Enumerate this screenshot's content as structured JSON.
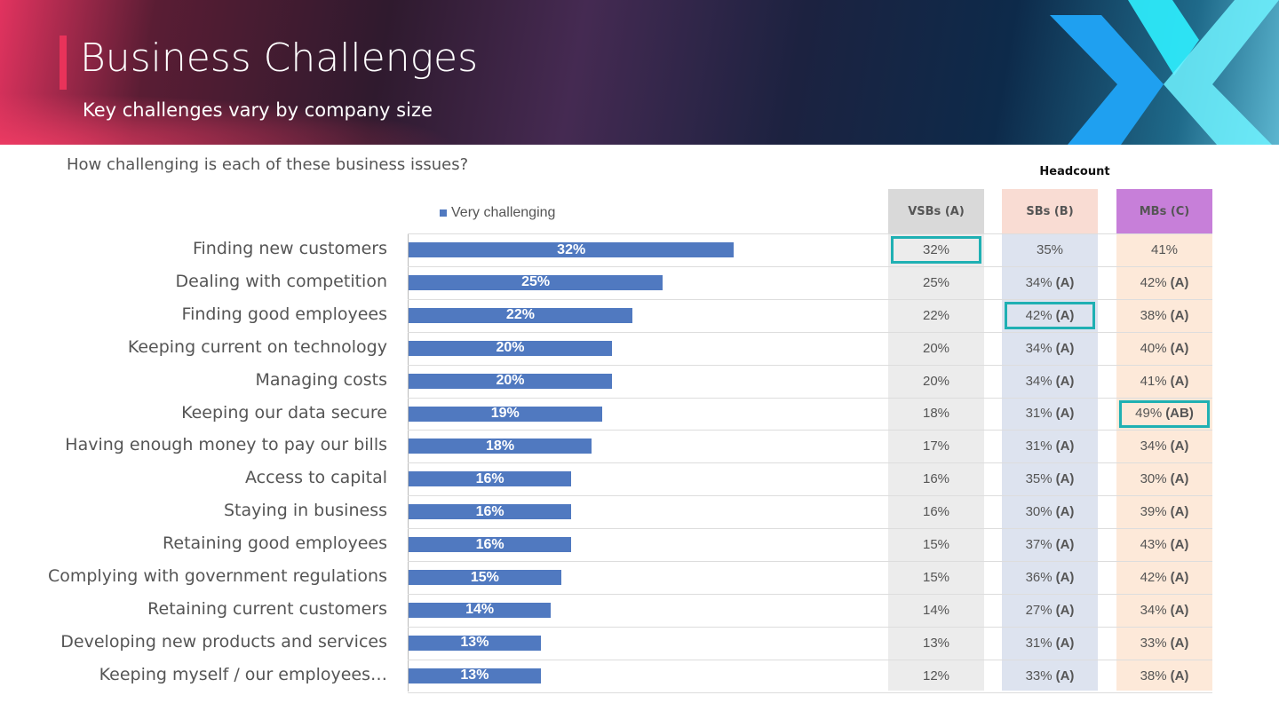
{
  "header": {
    "title": "Business Challenges",
    "subtitle": "Key challenges vary by company size"
  },
  "question": "How challenging is each of these business issues?",
  "table": {
    "group_label": "Headcount",
    "columns": [
      "VSBs (A)",
      "SBs (B)",
      "MBs (C)"
    ],
    "column_colors": [
      "#d9d9d9",
      "#f9dcd3",
      "#c77fd9"
    ],
    "highlight_color": "#1fb0b3"
  },
  "chart_data": {
    "type": "bar",
    "orientation": "horizontal",
    "legend": "top",
    "series": [
      {
        "name": "Very challenging",
        "color": "#5079c0",
        "values": [
          32,
          25,
          22,
          20,
          20,
          19,
          18,
          16,
          16,
          16,
          15,
          14,
          13,
          13
        ]
      }
    ],
    "categories": [
      "Finding new customers",
      "Dealing with competition",
      "Finding good employees",
      "Keeping current on technology",
      "Managing costs",
      "Keeping our data secure",
      "Having enough money to pay our bills",
      "Access to capital",
      "Staying in business",
      "Retaining good employees",
      "Complying with government regulations",
      "Retaining current customers",
      "Developing new products and services",
      "Keeping myself / our employees…"
    ],
    "data_labels": [
      "32%",
      "25%",
      "22%",
      "20%",
      "20%",
      "19%",
      "18%",
      "16%",
      "16%",
      "16%",
      "15%",
      "14%",
      "13%",
      "13%"
    ]
  },
  "rows": [
    {
      "a": "32%",
      "b": "35%",
      "bs": "",
      "c": "41%",
      "cs": "",
      "hl": "a"
    },
    {
      "a": "25%",
      "b": "34%",
      "bs": "(A)",
      "c": "42%",
      "cs": "(A)"
    },
    {
      "a": "22%",
      "b": "42%",
      "bs": "(A)",
      "c": "38%",
      "cs": "(A)",
      "hl": "b"
    },
    {
      "a": "20%",
      "b": "34%",
      "bs": "(A)",
      "c": "40%",
      "cs": "(A)"
    },
    {
      "a": "20%",
      "b": "34%",
      "bs": "(A)",
      "c": "41%",
      "cs": "(A)"
    },
    {
      "a": "18%",
      "b": "31%",
      "bs": "(A)",
      "c": "49%",
      "cs": "(AB)",
      "hl": "c"
    },
    {
      "a": "17%",
      "b": "31%",
      "bs": "(A)",
      "c": "34%",
      "cs": "(A)"
    },
    {
      "a": "16%",
      "b": "35%",
      "bs": "(A)",
      "c": "30%",
      "cs": "(A)"
    },
    {
      "a": "16%",
      "b": "30%",
      "bs": "(A)",
      "c": "39%",
      "cs": "(A)"
    },
    {
      "a": "15%",
      "b": "37%",
      "bs": "(A)",
      "c": "43%",
      "cs": "(A)"
    },
    {
      "a": "15%",
      "b": "36%",
      "bs": "(A)",
      "c": "42%",
      "cs": "(A)"
    },
    {
      "a": "14%",
      "b": "27%",
      "bs": "(A)",
      "c": "34%",
      "cs": "(A)"
    },
    {
      "a": "13%",
      "b": "31%",
      "bs": "(A)",
      "c": "33%",
      "cs": "(A)"
    },
    {
      "a": "12%",
      "b": "33%",
      "bs": "(A)",
      "c": "38%",
      "cs": "(A)"
    }
  ]
}
